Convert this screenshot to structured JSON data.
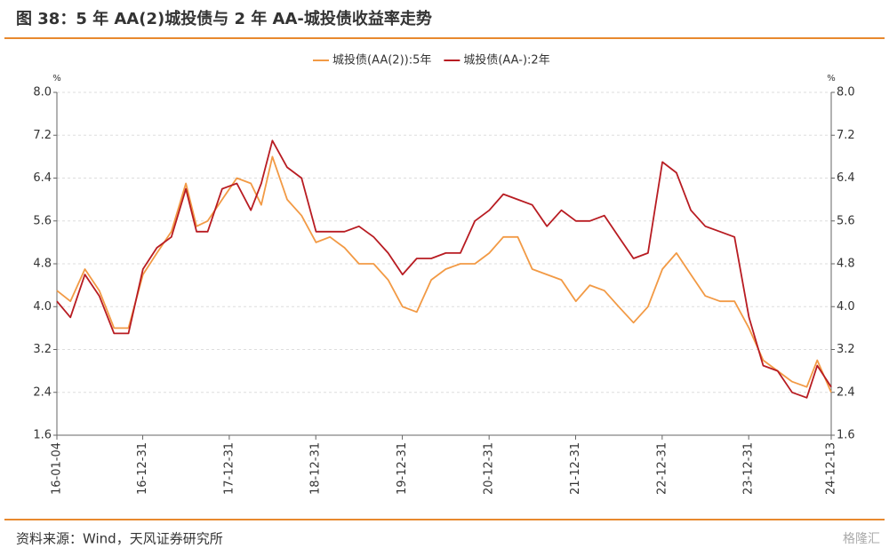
{
  "chart_data": {
    "type": "line",
    "title": "图 38：5 年 AA(2)城投债与 2 年 AA-城投债收益率走势",
    "source": "资料来源：Wind，天风证券研究所",
    "watermark": "格隆汇",
    "ylabel": "%",
    "y2label": "%",
    "x": [
      "16-01-04",
      "16-03-01",
      "16-05-01",
      "16-07-01",
      "16-09-01",
      "16-11-01",
      "17-01-01",
      "17-03-01",
      "17-05-01",
      "17-07-01",
      "17-08-15",
      "17-10-01",
      "17-12-01",
      "18-02-01",
      "18-04-01",
      "18-05-15",
      "18-07-01",
      "18-09-01",
      "18-11-01",
      "19-01-01",
      "19-03-01",
      "19-05-01",
      "19-07-01",
      "19-09-01",
      "19-11-01",
      "20-01-01",
      "20-03-01",
      "20-05-01",
      "20-07-01",
      "20-09-01",
      "20-11-01",
      "21-01-01",
      "21-03-01",
      "21-05-01",
      "21-07-01",
      "21-09-01",
      "21-11-01",
      "22-01-01",
      "22-03-01",
      "22-05-01",
      "22-07-01",
      "22-09-01",
      "22-11-01",
      "23-01-01",
      "23-03-01",
      "23-05-01",
      "23-07-01",
      "23-09-01",
      "23-11-01",
      "24-01-01",
      "24-03-01",
      "24-05-01",
      "24-07-01",
      "24-09-01",
      "24-10-15",
      "24-12-13"
    ],
    "series": [
      {
        "name": "城投债(AA(2)):5年",
        "color": "#f29a45",
        "values": [
          4.3,
          4.1,
          4.7,
          4.3,
          3.6,
          3.6,
          4.6,
          5.0,
          5.4,
          6.3,
          5.5,
          5.6,
          6.0,
          6.4,
          6.3,
          5.9,
          6.8,
          6.0,
          5.7,
          5.2,
          5.3,
          5.1,
          4.8,
          4.8,
          4.5,
          4.0,
          3.9,
          4.5,
          4.7,
          4.8,
          4.8,
          5.0,
          5.3,
          5.3,
          4.7,
          4.6,
          4.5,
          4.1,
          4.4,
          4.3,
          4.0,
          3.7,
          4.0,
          4.7,
          5.0,
          4.6,
          4.2,
          4.1,
          4.1,
          3.6,
          3.0,
          2.8,
          2.6,
          2.5,
          3.0,
          2.4
        ]
      },
      {
        "name": "城投债(AA-):2年",
        "color": "#b81c22",
        "values": [
          4.1,
          3.8,
          4.6,
          4.2,
          3.5,
          3.5,
          4.7,
          5.1,
          5.3,
          6.2,
          5.4,
          5.4,
          6.2,
          6.3,
          5.8,
          6.3,
          7.1,
          6.6,
          6.4,
          5.4,
          5.4,
          5.4,
          5.5,
          5.3,
          5.0,
          4.6,
          4.9,
          4.9,
          5.0,
          5.0,
          5.6,
          5.8,
          6.1,
          6.0,
          5.9,
          5.5,
          5.8,
          5.6,
          5.6,
          5.7,
          5.3,
          4.9,
          5.0,
          6.7,
          6.5,
          5.8,
          5.5,
          5.4,
          5.3,
          3.8,
          2.9,
          2.8,
          2.4,
          2.3,
          2.9,
          2.5
        ]
      }
    ],
    "xlim": [
      "16-01-04",
      "24-12-13"
    ],
    "xticks": [
      "16-01-04",
      "16-12-31",
      "17-12-31",
      "18-12-31",
      "19-12-31",
      "20-12-31",
      "21-12-31",
      "22-12-31",
      "23-12-31",
      "24-12-13"
    ],
    "ylim": [
      1.6,
      8.0
    ],
    "yticks": [
      {
        "value": 1.6,
        "label": "1.6"
      },
      {
        "value": 2.4,
        "label": "2.4"
      },
      {
        "value": 3.2,
        "label": "3.2"
      },
      {
        "value": 4.0,
        "label": "4.0"
      },
      {
        "value": 4.8,
        "label": "4.8"
      },
      {
        "value": 5.6,
        "label": "5.6"
      },
      {
        "value": 6.4,
        "label": "6.4"
      },
      {
        "value": 7.2,
        "label": "7.2"
      },
      {
        "value": 8.0,
        "label": "8.0"
      }
    ],
    "y2lim": [
      1.6,
      8.0
    ],
    "y2ticks": [
      {
        "value": 1.6,
        "label": "1.6"
      },
      {
        "value": 2.4,
        "label": "2.4"
      },
      {
        "value": 3.2,
        "label": "3.2"
      },
      {
        "value": 4.0,
        "label": "4.0"
      },
      {
        "value": 4.8,
        "label": "4.8"
      },
      {
        "value": 5.6,
        "label": "5.6"
      },
      {
        "value": 6.4,
        "label": "6.4"
      },
      {
        "value": 7.2,
        "label": "7.2"
      },
      {
        "value": 8.0,
        "label": "8.0"
      }
    ],
    "grid": true,
    "legend": "top"
  }
}
